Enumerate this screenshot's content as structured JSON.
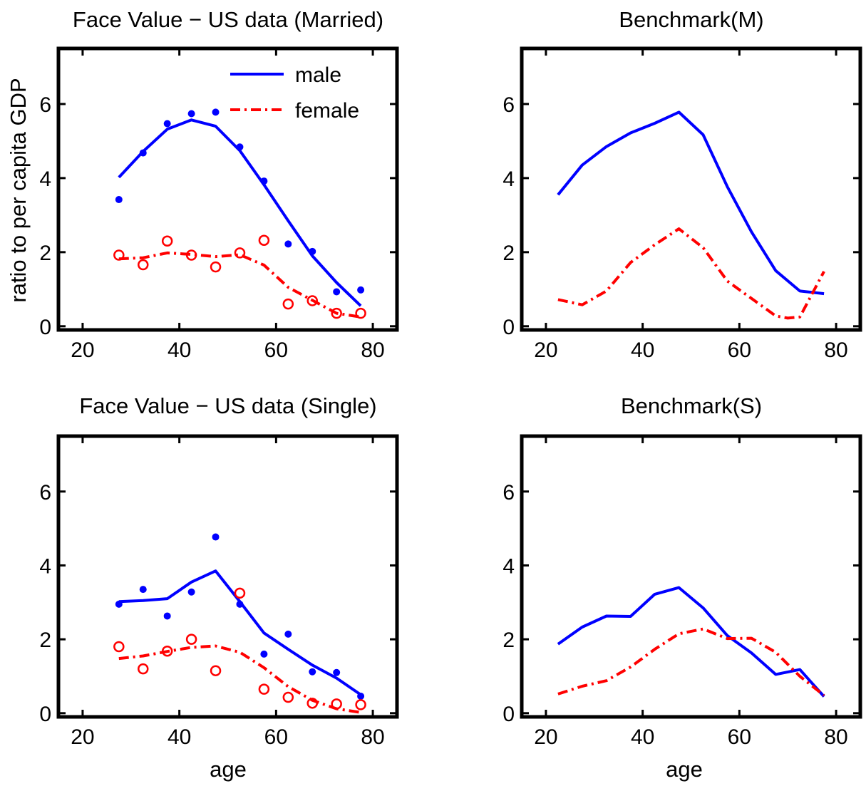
{
  "chart_data": [
    {
      "type": "line",
      "title": "Face Value − US data (Married)",
      "xlabel": "",
      "ylabel": "ratio to per capita GDP",
      "xlim": [
        15,
        85
      ],
      "ylim": [
        -0.1,
        7.5
      ],
      "xticks": [
        20,
        40,
        60,
        80
      ],
      "yticks": [
        0,
        2,
        4,
        6
      ],
      "legend": {
        "position": "top-right",
        "entries": [
          "male",
          "female"
        ]
      },
      "series": [
        {
          "name": "male",
          "style": "solid-line",
          "color": "#0000ff",
          "x": [
            27.5,
            32.5,
            37.5,
            42.5,
            47.5,
            52.5,
            57.5,
            62.5,
            67.5,
            72.5,
            77.5
          ],
          "y": [
            4.02,
            4.72,
            5.32,
            5.57,
            5.4,
            4.74,
            3.82,
            2.85,
            1.9,
            1.18,
            0.55
          ]
        },
        {
          "name": "female",
          "style": "dash-dot-line",
          "color": "#ff0000",
          "x": [
            27.5,
            32.5,
            37.5,
            42.5,
            47.5,
            52.5,
            57.5,
            62.5,
            67.5,
            72.5,
            77.5
          ],
          "y": [
            1.82,
            1.85,
            1.98,
            1.94,
            1.88,
            1.93,
            1.65,
            1.05,
            0.7,
            0.35,
            0.25
          ]
        },
        {
          "name": "male data",
          "style": "filled-dots",
          "color": "#0000ff",
          "x": [
            27.5,
            32.5,
            37.5,
            42.5,
            47.5,
            52.5,
            57.5,
            62.5,
            67.5,
            72.5,
            77.5
          ],
          "y": [
            3.42,
            4.68,
            5.47,
            5.74,
            5.78,
            4.84,
            3.92,
            2.22,
            2.02,
            0.93,
            0.98
          ]
        },
        {
          "name": "female data",
          "style": "open-circles",
          "color": "#ff0000",
          "x": [
            27.5,
            32.5,
            37.5,
            42.5,
            47.5,
            52.5,
            57.5,
            62.5,
            67.5,
            72.5,
            77.5
          ],
          "y": [
            1.92,
            1.66,
            2.3,
            1.92,
            1.6,
            1.98,
            2.32,
            0.6,
            0.69,
            0.35,
            0.35
          ]
        }
      ]
    },
    {
      "type": "line",
      "title": "Benchmark(M)",
      "xlabel": "",
      "ylabel": "",
      "xlim": [
        15,
        85
      ],
      "ylim": [
        -0.1,
        7.5
      ],
      "xticks": [
        20,
        40,
        60,
        80
      ],
      "yticks": [
        0,
        2,
        4,
        6
      ],
      "series": [
        {
          "name": "male",
          "style": "solid-line",
          "color": "#0000ff",
          "x": [
            22.5,
            27.5,
            32.5,
            37.5,
            42.5,
            47.5,
            52.5,
            57.5,
            62.5,
            67.5,
            72.5,
            77.5
          ],
          "y": [
            3.55,
            4.35,
            4.85,
            5.22,
            5.48,
            5.78,
            5.17,
            3.77,
            2.55,
            1.5,
            0.95,
            0.88
          ]
        },
        {
          "name": "female",
          "style": "dash-dot-line",
          "color": "#ff0000",
          "x": [
            22.5,
            27.5,
            32.5,
            37.5,
            42.5,
            47.5,
            52.5,
            57.5,
            62.5,
            67.5,
            70,
            72.5,
            77.5
          ],
          "y": [
            0.72,
            0.58,
            0.95,
            1.72,
            2.2,
            2.63,
            2.12,
            1.22,
            0.75,
            0.28,
            0.22,
            0.25,
            1.48
          ]
        }
      ]
    },
    {
      "type": "line",
      "title": "Face Value − US data (Single)",
      "xlabel": "age",
      "ylabel": "",
      "xlim": [
        15,
        85
      ],
      "ylim": [
        -0.1,
        7.5
      ],
      "xticks": [
        20,
        40,
        60,
        80
      ],
      "yticks": [
        0,
        2,
        4,
        6
      ],
      "series": [
        {
          "name": "male",
          "style": "solid-line",
          "color": "#0000ff",
          "x": [
            27.5,
            32.5,
            37.5,
            42.5,
            47.5,
            52.5,
            57.5,
            62.5,
            67.5,
            72.5,
            77.5
          ],
          "y": [
            3.02,
            3.05,
            3.1,
            3.55,
            3.85,
            3.02,
            2.17,
            1.73,
            1.3,
            0.95,
            0.5
          ]
        },
        {
          "name": "female",
          "style": "dash-dot-line",
          "color": "#ff0000",
          "x": [
            27.5,
            32.5,
            37.5,
            42.5,
            47.5,
            52.5,
            57.5,
            62.5,
            67.5,
            72.5,
            77.5
          ],
          "y": [
            1.48,
            1.55,
            1.67,
            1.78,
            1.82,
            1.65,
            1.23,
            0.72,
            0.35,
            0.12,
            0.02
          ]
        },
        {
          "name": "male data",
          "style": "filled-dots",
          "color": "#0000ff",
          "x": [
            27.5,
            32.5,
            37.5,
            42.5,
            47.5,
            52.5,
            57.5,
            62.5,
            67.5,
            72.5,
            77.5
          ],
          "y": [
            2.95,
            3.35,
            2.63,
            3.28,
            4.77,
            2.95,
            1.6,
            2.14,
            1.12,
            1.1,
            0.46
          ]
        },
        {
          "name": "female data",
          "style": "open-circles",
          "color": "#ff0000",
          "x": [
            27.5,
            32.5,
            37.5,
            42.5,
            47.5,
            52.5,
            57.5,
            62.5,
            67.5,
            72.5,
            77.5
          ],
          "y": [
            1.8,
            1.2,
            1.68,
            2.0,
            1.15,
            3.25,
            0.65,
            0.43,
            0.27,
            0.25,
            0.23
          ]
        }
      ]
    },
    {
      "type": "line",
      "title": "Benchmark(S)",
      "xlabel": "age",
      "ylabel": "",
      "xlim": [
        15,
        85
      ],
      "ylim": [
        -0.1,
        7.5
      ],
      "xticks": [
        20,
        40,
        60,
        80
      ],
      "yticks": [
        0,
        2,
        4,
        6
      ],
      "series": [
        {
          "name": "male",
          "style": "solid-line",
          "color": "#0000ff",
          "x": [
            22.5,
            27.5,
            32.5,
            37.5,
            42.5,
            47.5,
            52.5,
            57.5,
            62.5,
            67.5,
            72.5,
            77.5
          ],
          "y": [
            1.87,
            2.33,
            2.63,
            2.62,
            3.22,
            3.4,
            2.85,
            2.1,
            1.63,
            1.05,
            1.18,
            0.45
          ]
        },
        {
          "name": "female",
          "style": "dash-dot-line",
          "color": "#ff0000",
          "x": [
            22.5,
            27.5,
            32.5,
            37.5,
            42.5,
            47.5,
            52.5,
            57.5,
            62.5,
            67.5,
            72.5,
            77.5
          ],
          "y": [
            0.52,
            0.73,
            0.88,
            1.25,
            1.73,
            2.15,
            2.28,
            2.02,
            2.03,
            1.65,
            1.0,
            0.48
          ]
        }
      ]
    }
  ]
}
